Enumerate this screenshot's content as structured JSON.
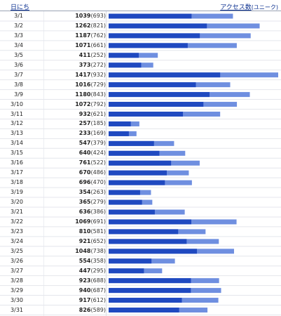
{
  "header": {
    "date_label": "日にち",
    "access_label": "アクセス数",
    "unique_label": "(ユニーク)"
  },
  "colors": {
    "unique_bar": "#1f49c0",
    "total_bar": "#6f8fe0",
    "row_line": "#e4e6ec",
    "header_text": "#0a2f8f"
  },
  "chart_data": {
    "type": "bar",
    "orientation": "horizontal",
    "stacked_overlay": true,
    "categories": [
      "3/1",
      "3/2",
      "3/3",
      "3/4",
      "3/5",
      "3/6",
      "3/7",
      "3/8",
      "3/9",
      "3/10",
      "3/11",
      "3/12",
      "3/13",
      "3/14",
      "3/15",
      "3/16",
      "3/17",
      "3/18",
      "3/19",
      "3/20",
      "3/21",
      "3/22",
      "3/23",
      "3/24",
      "3/25",
      "3/26",
      "3/27",
      "3/28",
      "3/29",
      "3/30",
      "3/31"
    ],
    "series": [
      {
        "name": "アクセス数",
        "values": [
          1039,
          1262,
          1187,
          1071,
          411,
          373,
          1417,
          1016,
          1180,
          1072,
          932,
          257,
          233,
          547,
          640,
          761,
          670,
          696,
          354,
          365,
          636,
          1069,
          810,
          921,
          1048,
          554,
          447,
          923,
          940,
          917,
          826
        ]
      },
      {
        "name": "ユニーク",
        "values": [
          693,
          821,
          762,
          661,
          252,
          272,
          932,
          729,
          843,
          792,
          621,
          185,
          169,
          379,
          424,
          522,
          486,
          470,
          263,
          279,
          386,
          691,
          581,
          652,
          738,
          358,
          295,
          688,
          687,
          612,
          589
        ]
      }
    ],
    "xlim": [
      0,
      1417
    ]
  }
}
